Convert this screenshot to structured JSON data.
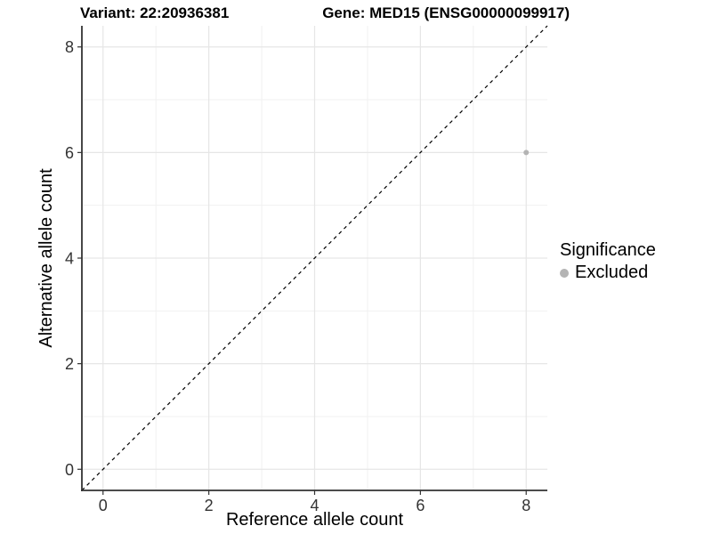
{
  "titles": {
    "left": "Variant: 22:20936381",
    "right": "Gene: MED15 (ENSG00000099917)"
  },
  "chart_data": {
    "type": "scatter",
    "title_left": "Variant: 22:20936381",
    "title_right": "Gene: MED15 (ENSG00000099917)",
    "xlabel": "Reference allele count",
    "ylabel": "Alternative allele count",
    "xlim": [
      -0.4,
      8.4
    ],
    "ylim": [
      -0.4,
      8.4
    ],
    "x_major_ticks": [
      0,
      2,
      4,
      6,
      8
    ],
    "y_major_ticks": [
      0,
      2,
      4,
      6,
      8
    ],
    "x_minor_ticks": [
      1,
      3,
      5,
      7
    ],
    "y_minor_ticks": [
      1,
      3,
      5,
      7
    ],
    "grid": "major+minor on white panel",
    "reference_line": {
      "type": "identity y=x",
      "style": "dashed",
      "color": "#000000"
    },
    "series": [
      {
        "name": "Excluded",
        "color": "#b4b4b4",
        "points": [
          {
            "x": 8,
            "y": 6
          }
        ]
      }
    ],
    "legend": {
      "title": "Significance",
      "position": "right-middle",
      "entries": [
        {
          "label": "Excluded",
          "color": "#b4b4b4"
        }
      ]
    }
  },
  "colors": {
    "background": "#ffffff",
    "grid_major": "#e6e6e6",
    "grid_minor": "#f1f1f1",
    "axis_line": "#333333",
    "tick_label": "#333333",
    "axis_title": "#000000",
    "point": "#b4b4b4",
    "reference_line": "#000000"
  }
}
